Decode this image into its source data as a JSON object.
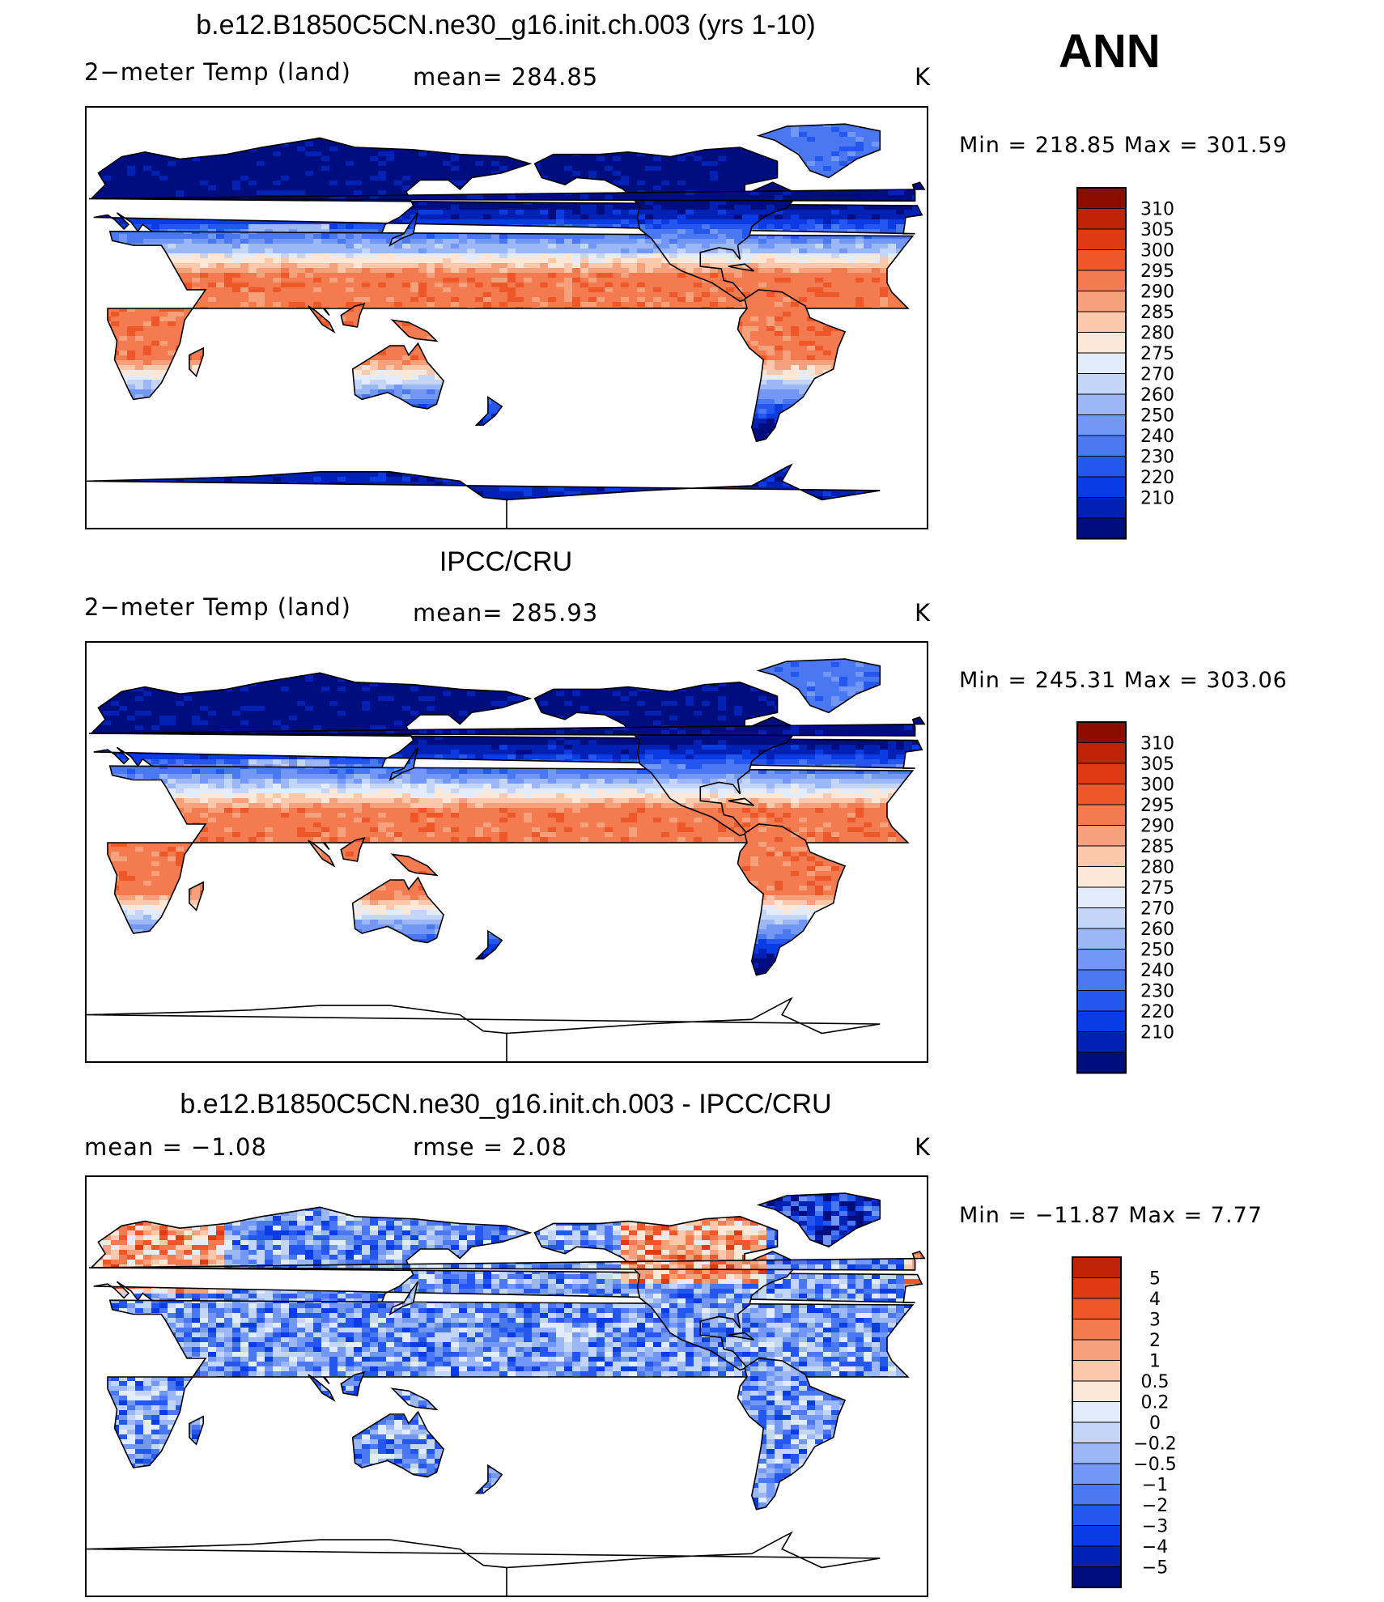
{
  "season": "ANN",
  "colors": {
    "abs_scale": [
      "#000d7f",
      "#0021b3",
      "#0a3ce6",
      "#2457f0",
      "#4a78f2",
      "#7297f4",
      "#9cb7f6",
      "#c4d6f8",
      "#e2ecfb",
      "#fde8d8",
      "#fbc8ac",
      "#f7a07c",
      "#f47a50",
      "#ee5729",
      "#df3a14",
      "#bf2206",
      "#8c0d00"
    ],
    "diff_scale": [
      "#000d7f",
      "#0021b3",
      "#0a3ce6",
      "#2457f0",
      "#4a78f2",
      "#7297f4",
      "#9cb7f6",
      "#c4d6f8",
      "#e2ecfb",
      "#fde8d8",
      "#fbc8ac",
      "#f7a07c",
      "#f47a50",
      "#ee5729",
      "#df3a14",
      "#bf2206"
    ]
  },
  "panels": [
    {
      "title": "b.e12.B1850C5CN.ne30_g16.init.ch.003 (yrs 1-10)",
      "left_label": "2−meter Temp (land)",
      "center_label": "mean= 284.85",
      "units": "K",
      "minmax": "Min = 218.85 Max = 301.59"
    },
    {
      "title": "IPCC/CRU",
      "left_label": "2−meter Temp (land)",
      "center_label": "mean= 285.93",
      "units": "K",
      "minmax": "Min = 245.31 Max = 303.06"
    },
    {
      "title": "b.e12.B1850C5CN.ne30_g16.init.ch.003 - IPCC/CRU",
      "left_label": "mean =   −1.08",
      "center_label": "rmse =    2.08",
      "units": "K",
      "minmax": "Min = −11.87 Max =    7.77"
    }
  ],
  "chart_data": [
    {
      "type": "heatmap",
      "title": "b.e12.B1850C5CN.ne30_g16.init.ch.003 (yrs 1-10)",
      "variable": "2−meter Temp (land)",
      "units": "K",
      "mean": 284.85,
      "min": 218.85,
      "max": 301.59,
      "colorbar_levels": [
        210,
        220,
        230,
        240,
        250,
        260,
        270,
        275,
        280,
        285,
        290,
        295,
        300,
        305,
        310
      ],
      "colorbar_labels": [
        "310",
        "305",
        "300",
        "295",
        "290",
        "285",
        "280",
        "275",
        "270",
        "260",
        "250",
        "240",
        "230",
        "220",
        "210"
      ]
    },
    {
      "type": "heatmap",
      "title": "IPCC/CRU",
      "variable": "2−meter Temp (land)",
      "units": "K",
      "mean": 285.93,
      "min": 245.31,
      "max": 303.06,
      "colorbar_levels": [
        210,
        220,
        230,
        240,
        250,
        260,
        270,
        275,
        280,
        285,
        290,
        295,
        300,
        305,
        310
      ],
      "colorbar_labels": [
        "310",
        "305",
        "300",
        "295",
        "290",
        "285",
        "280",
        "275",
        "270",
        "260",
        "250",
        "240",
        "230",
        "220",
        "210"
      ]
    },
    {
      "type": "heatmap",
      "title": "b.e12.B1850C5CN.ne30_g16.init.ch.003 - IPCC/CRU",
      "units": "K",
      "mean": -1.08,
      "rmse": 2.08,
      "min": -11.87,
      "max": 7.77,
      "colorbar_levels": [
        -5,
        -4,
        -3,
        -2,
        -1,
        -0.5,
        -0.2,
        0,
        0.2,
        0.5,
        1,
        2,
        3,
        4,
        5
      ],
      "colorbar_labels": [
        "5",
        "4",
        "3",
        "2",
        "1",
        "0.5",
        "0.2",
        "0",
        "−0.2",
        "−0.5",
        "−1",
        "−2",
        "−3",
        "−4",
        "−5"
      ]
    }
  ]
}
